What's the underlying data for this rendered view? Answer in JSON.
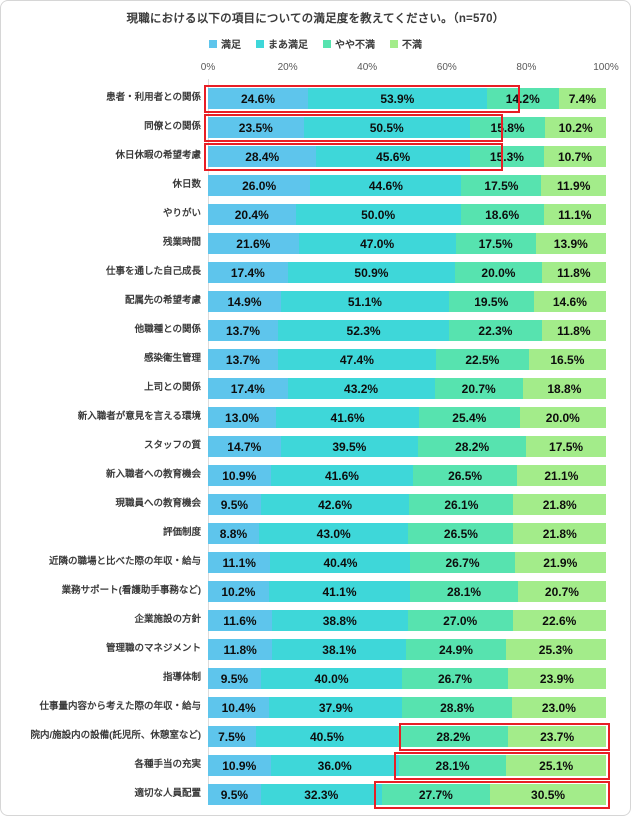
{
  "chart_data": {
    "type": "bar",
    "orientation": "horizontal",
    "stacked": true,
    "title": "現職における以下の項目についての満足度を教えてください。（n=570）",
    "legend_position": "top",
    "grid": false,
    "xlim": [
      0,
      100
    ],
    "x_ticks": [
      "0%",
      "20%",
      "40%",
      "60%",
      "80%",
      "100%"
    ],
    "highlight_color": "#e81e25",
    "series": [
      {
        "name": "満足",
        "color": "#5ec5ec"
      },
      {
        "name": "まあ満足",
        "color": "#3ed7d9"
      },
      {
        "name": "やや不満",
        "color": "#57e3af"
      },
      {
        "name": "不満",
        "color": "#a3ec8a"
      }
    ],
    "rows": [
      {
        "label": "患者・利用者との関係",
        "values": [
          24.6,
          53.9,
          14.2,
          7.4
        ],
        "highlight": "left"
      },
      {
        "label": "同僚との関係",
        "values": [
          23.5,
          50.5,
          15.8,
          10.2
        ],
        "highlight": "left"
      },
      {
        "label": "休日休暇の希望考慮",
        "values": [
          28.4,
          45.6,
          15.3,
          10.7
        ],
        "highlight": "left"
      },
      {
        "label": "休日数",
        "values": [
          26.0,
          44.6,
          17.5,
          11.9
        ],
        "highlight": "none"
      },
      {
        "label": "やりがい",
        "values": [
          20.4,
          50.0,
          18.6,
          11.1
        ],
        "highlight": "none"
      },
      {
        "label": "残業時間",
        "values": [
          21.6,
          47.0,
          17.5,
          13.9
        ],
        "highlight": "none"
      },
      {
        "label": "仕事を通した自己成長",
        "values": [
          17.4,
          50.9,
          20.0,
          11.8
        ],
        "highlight": "none"
      },
      {
        "label": "配属先の希望考慮",
        "values": [
          14.9,
          51.1,
          19.5,
          14.6
        ],
        "highlight": "none"
      },
      {
        "label": "他職種との関係",
        "values": [
          13.7,
          52.3,
          22.3,
          11.8
        ],
        "highlight": "none"
      },
      {
        "label": "感染衛生管理",
        "values": [
          13.7,
          47.4,
          22.5,
          16.5
        ],
        "highlight": "none"
      },
      {
        "label": "上司との関係",
        "values": [
          17.4,
          43.2,
          20.7,
          18.8
        ],
        "highlight": "none"
      },
      {
        "label": "新入職者が意見を言える環境",
        "values": [
          13.0,
          41.6,
          25.4,
          20.0
        ],
        "highlight": "none"
      },
      {
        "label": "スタッフの質",
        "values": [
          14.7,
          39.5,
          28.2,
          17.5
        ],
        "highlight": "none"
      },
      {
        "label": "新入職者への教育機会",
        "values": [
          10.9,
          41.6,
          26.5,
          21.1
        ],
        "highlight": "none"
      },
      {
        "label": "現職員への教育機会",
        "values": [
          9.5,
          42.6,
          26.1,
          21.8
        ],
        "highlight": "none"
      },
      {
        "label": "評価制度",
        "values": [
          8.8,
          43.0,
          26.5,
          21.8
        ],
        "highlight": "none"
      },
      {
        "label": "近隣の職場と比べた際の年収・給与",
        "values": [
          11.1,
          40.4,
          26.7,
          21.9
        ],
        "highlight": "none"
      },
      {
        "label": "業務サポート(看護助手事務など)",
        "values": [
          10.2,
          41.1,
          28.1,
          20.7
        ],
        "highlight": "none"
      },
      {
        "label": "企業施設の方針",
        "values": [
          11.6,
          38.8,
          27.0,
          22.6
        ],
        "highlight": "none"
      },
      {
        "label": "管理職のマネジメント",
        "values": [
          11.8,
          38.1,
          24.9,
          25.3
        ],
        "highlight": "none"
      },
      {
        "label": "指導体制",
        "values": [
          9.5,
          40.0,
          26.7,
          23.9
        ],
        "highlight": "none"
      },
      {
        "label": "仕事量内容から考えた際の年収・給与",
        "values": [
          10.4,
          37.9,
          28.8,
          23.0
        ],
        "highlight": "none"
      },
      {
        "label": "院内/施設内の設備(託児所、休憩室など)",
        "values": [
          7.5,
          40.5,
          28.2,
          23.7
        ],
        "highlight": "right"
      },
      {
        "label": "各種手当の充実",
        "values": [
          10.9,
          36.0,
          28.1,
          25.1
        ],
        "highlight": "right"
      },
      {
        "label": "適切な人員配置",
        "values": [
          9.5,
          32.3,
          27.7,
          30.5
        ],
        "highlight": "right"
      }
    ]
  }
}
